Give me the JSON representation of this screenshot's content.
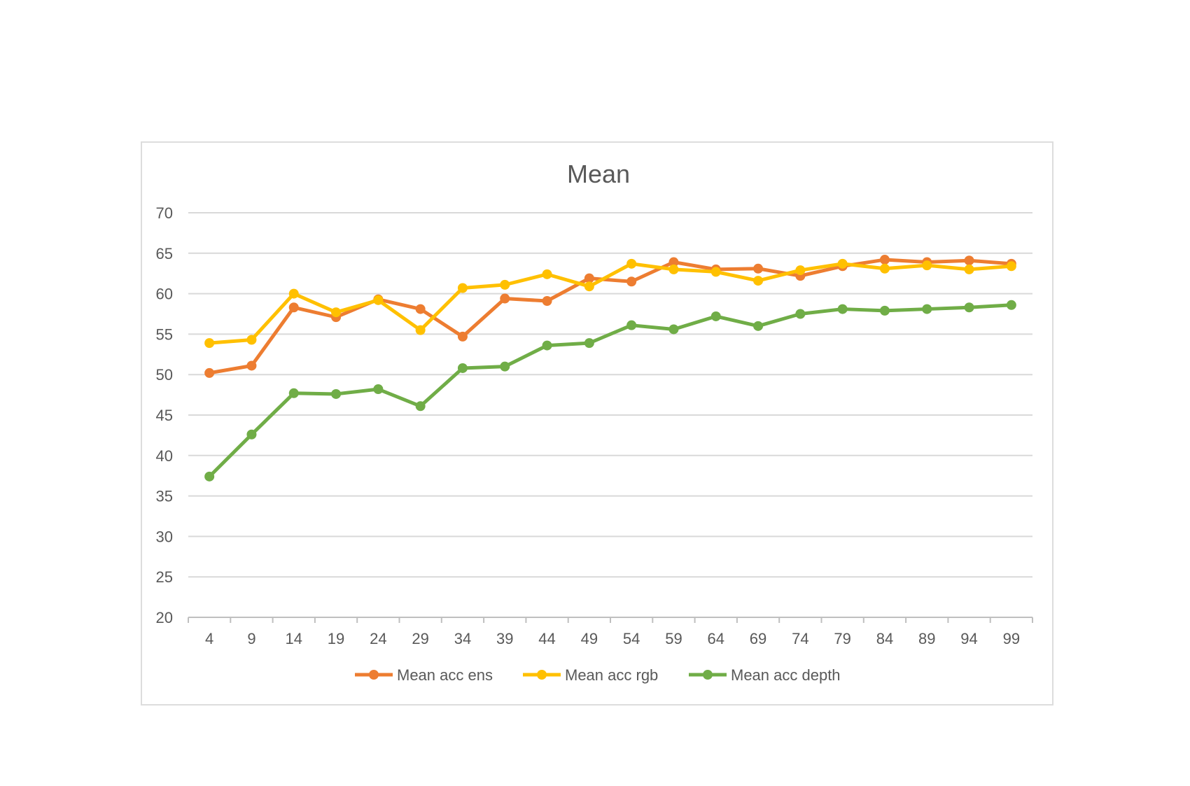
{
  "chart_data": {
    "type": "line",
    "title": "Mean",
    "xlabel": "",
    "ylabel": "",
    "ylim": [
      20,
      70
    ],
    "ytick_step": 5,
    "grid": true,
    "legend_position": "bottom",
    "categories": [
      "4",
      "9",
      "14",
      "19",
      "24",
      "29",
      "34",
      "39",
      "44",
      "49",
      "54",
      "59",
      "64",
      "69",
      "74",
      "79",
      "84",
      "89",
      "94",
      "99"
    ],
    "series": [
      {
        "name": "Mean acc ens",
        "color": "#ED7D31",
        "values": [
          50.2,
          51.1,
          58.3,
          57.1,
          59.3,
          58.1,
          54.7,
          59.4,
          59.1,
          61.9,
          61.5,
          63.9,
          63.0,
          63.1,
          62.2,
          63.4,
          64.2,
          63.9,
          64.1,
          63.7
        ]
      },
      {
        "name": "Mean acc rgb",
        "color": "#FFC000",
        "values": [
          53.9,
          54.3,
          60.0,
          57.7,
          59.2,
          55.5,
          60.7,
          61.1,
          62.4,
          60.9,
          63.7,
          63.0,
          62.7,
          61.6,
          62.9,
          63.7,
          63.1,
          63.5,
          63.0,
          63.4
        ]
      },
      {
        "name": "Mean acc depth",
        "color": "#70AD47",
        "values": [
          37.4,
          42.6,
          47.7,
          47.6,
          48.2,
          46.1,
          50.8,
          51.0,
          53.6,
          53.9,
          56.1,
          55.6,
          57.2,
          56.0,
          57.5,
          58.1,
          57.9,
          58.1,
          58.3,
          58.6
        ]
      }
    ]
  }
}
